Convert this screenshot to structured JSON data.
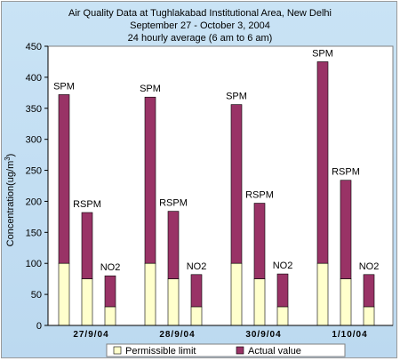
{
  "chart_data": {
    "type": "bar",
    "title": "Air Quality Data at Tughlakabad Institutional Area, New Delhi",
    "subtitle_lines": [
      "September 27 - October 3, 2004",
      "24 hourly average (6 am to 6 am)"
    ],
    "ylabel": "Concentration(ug/m3)",
    "ylabel_main": "Concentration(ug/m",
    "ylabel_sup": "3",
    "ylabel_end": ")",
    "xlabel": "",
    "ylim": [
      0,
      450
    ],
    "yticks": [
      0,
      50,
      100,
      150,
      200,
      250,
      300,
      350,
      400,
      450
    ],
    "grid": false,
    "legend_position": "bottom",
    "groups": [
      {
        "label": "27/9/04",
        "bars": [
          {
            "label": "SPM",
            "permissible": 100,
            "actual": 372
          },
          {
            "label": "RSPM",
            "permissible": 75,
            "actual": 182
          },
          {
            "label": "NO2",
            "permissible": 30,
            "actual": 80
          }
        ]
      },
      {
        "label": "28/9/04",
        "bars": [
          {
            "label": "SPM",
            "permissible": 100,
            "actual": 368
          },
          {
            "label": "RSPM",
            "permissible": 75,
            "actual": 184
          },
          {
            "label": "NO2",
            "permissible": 30,
            "actual": 82
          }
        ]
      },
      {
        "label": "30/9/04",
        "bars": [
          {
            "label": "SPM",
            "permissible": 100,
            "actual": 356
          },
          {
            "label": "RSPM",
            "permissible": 75,
            "actual": 197
          },
          {
            "label": "NO2",
            "permissible": 30,
            "actual": 83
          }
        ]
      },
      {
        "label": "1/10/04",
        "bars": [
          {
            "label": "SPM",
            "permissible": 100,
            "actual": 425
          },
          {
            "label": "RSPM",
            "permissible": 75,
            "actual": 234
          },
          {
            "label": "NO2",
            "permissible": 30,
            "actual": 82
          }
        ]
      }
    ],
    "series": [
      {
        "name": "Permissible limit",
        "color": "#ffffcc"
      },
      {
        "name": "Actual value",
        "color": "#993366"
      }
    ]
  }
}
